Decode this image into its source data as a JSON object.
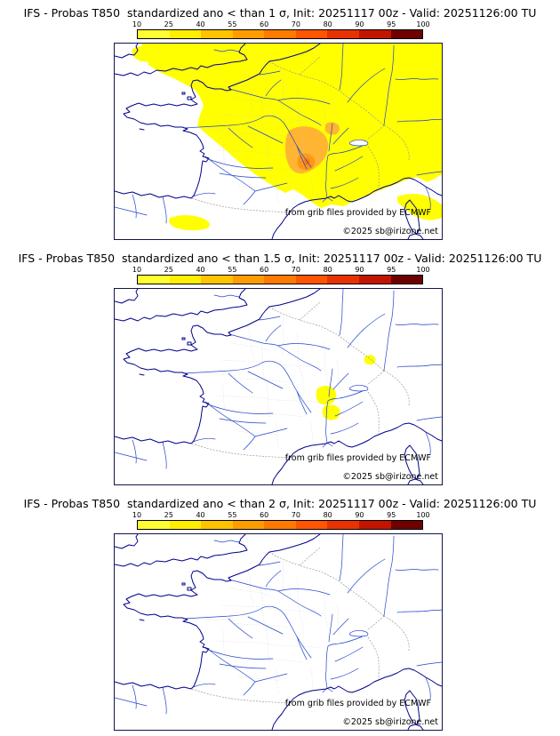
{
  "panels": [
    {
      "title": "IFS - Probas T850  standardized ano < than 1 σ, Init: 20251117 00z - Valid: 20251126:00 TU"
    },
    {
      "title": "IFS - Probas T850  standardized ano < than 1.5 σ, Init: 20251117 00z - Valid: 20251126:00 TU"
    },
    {
      "title": "IFS - Probas T850  standardized ano < than 2 σ, Init: 20251117 00z - Valid: 20251126:00 TU"
    }
  ],
  "colorbar": {
    "ticks": [
      "10",
      "25",
      "40",
      "55",
      "60",
      "70",
      "80",
      "90",
      "95",
      "100"
    ],
    "colors": [
      "#ffff33",
      "#ffee00",
      "#ffc300",
      "#ff9d00",
      "#ff7a00",
      "#ff5500",
      "#e83300",
      "#c31400",
      "#6e0000"
    ]
  },
  "map_caption": {
    "credit": "from grib files provided by ECMWF",
    "copyright": "©2025 sb@irizone.net"
  },
  "map_colors": {
    "coastline": "#00008b",
    "rivers": "#2244cc",
    "country_borders": "#999999",
    "department_borders": "#cccccc",
    "prob_low": "#ffff00",
    "prob_mid": "#ffb432",
    "prob_mid2": "#ff9614",
    "prob_high": "#ff7800"
  }
}
